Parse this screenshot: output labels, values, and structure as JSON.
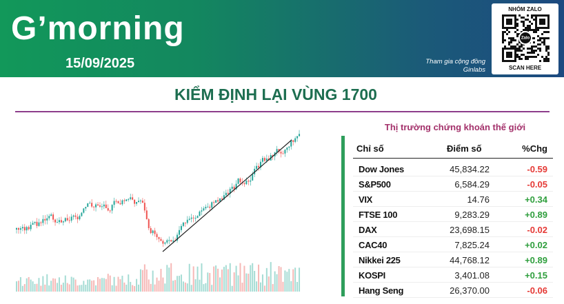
{
  "header": {
    "title": "G’morning",
    "date": "15/09/2025",
    "community": [
      "Tham gia cộng đồng",
      "Ginlabs"
    ],
    "qr_top": "NHÓM ZALO",
    "qr_center": "Zalo",
    "qr_bottom": "SCAN HERE"
  },
  "headline": "KIỂM ĐỊNH LẠI VÙNG 1700",
  "table": {
    "title": "Thị trường chứng khoán thế giới",
    "columns": [
      "Chỉ số",
      "Điểm số",
      "%Chg"
    ],
    "rows": [
      [
        "Dow Jones",
        "45,834.22",
        "-0.59"
      ],
      [
        "S&P500",
        "6,584.29",
        "-0.05"
      ],
      [
        "VIX",
        "14.76",
        "+0.34"
      ],
      [
        "FTSE 100",
        "9,283.29",
        "+0.89"
      ],
      [
        "DAX",
        "23,698.15",
        "-0.02"
      ],
      [
        "CAC40",
        "7,825.24",
        "+0.02"
      ],
      [
        "Nikkei 225",
        "44,768.12",
        "+0.89"
      ],
      [
        "KOSPI",
        "3,401.08",
        "+0.15"
      ],
      [
        "Hang Seng",
        "26,370.00",
        "-0.06"
      ]
    ]
  }
}
